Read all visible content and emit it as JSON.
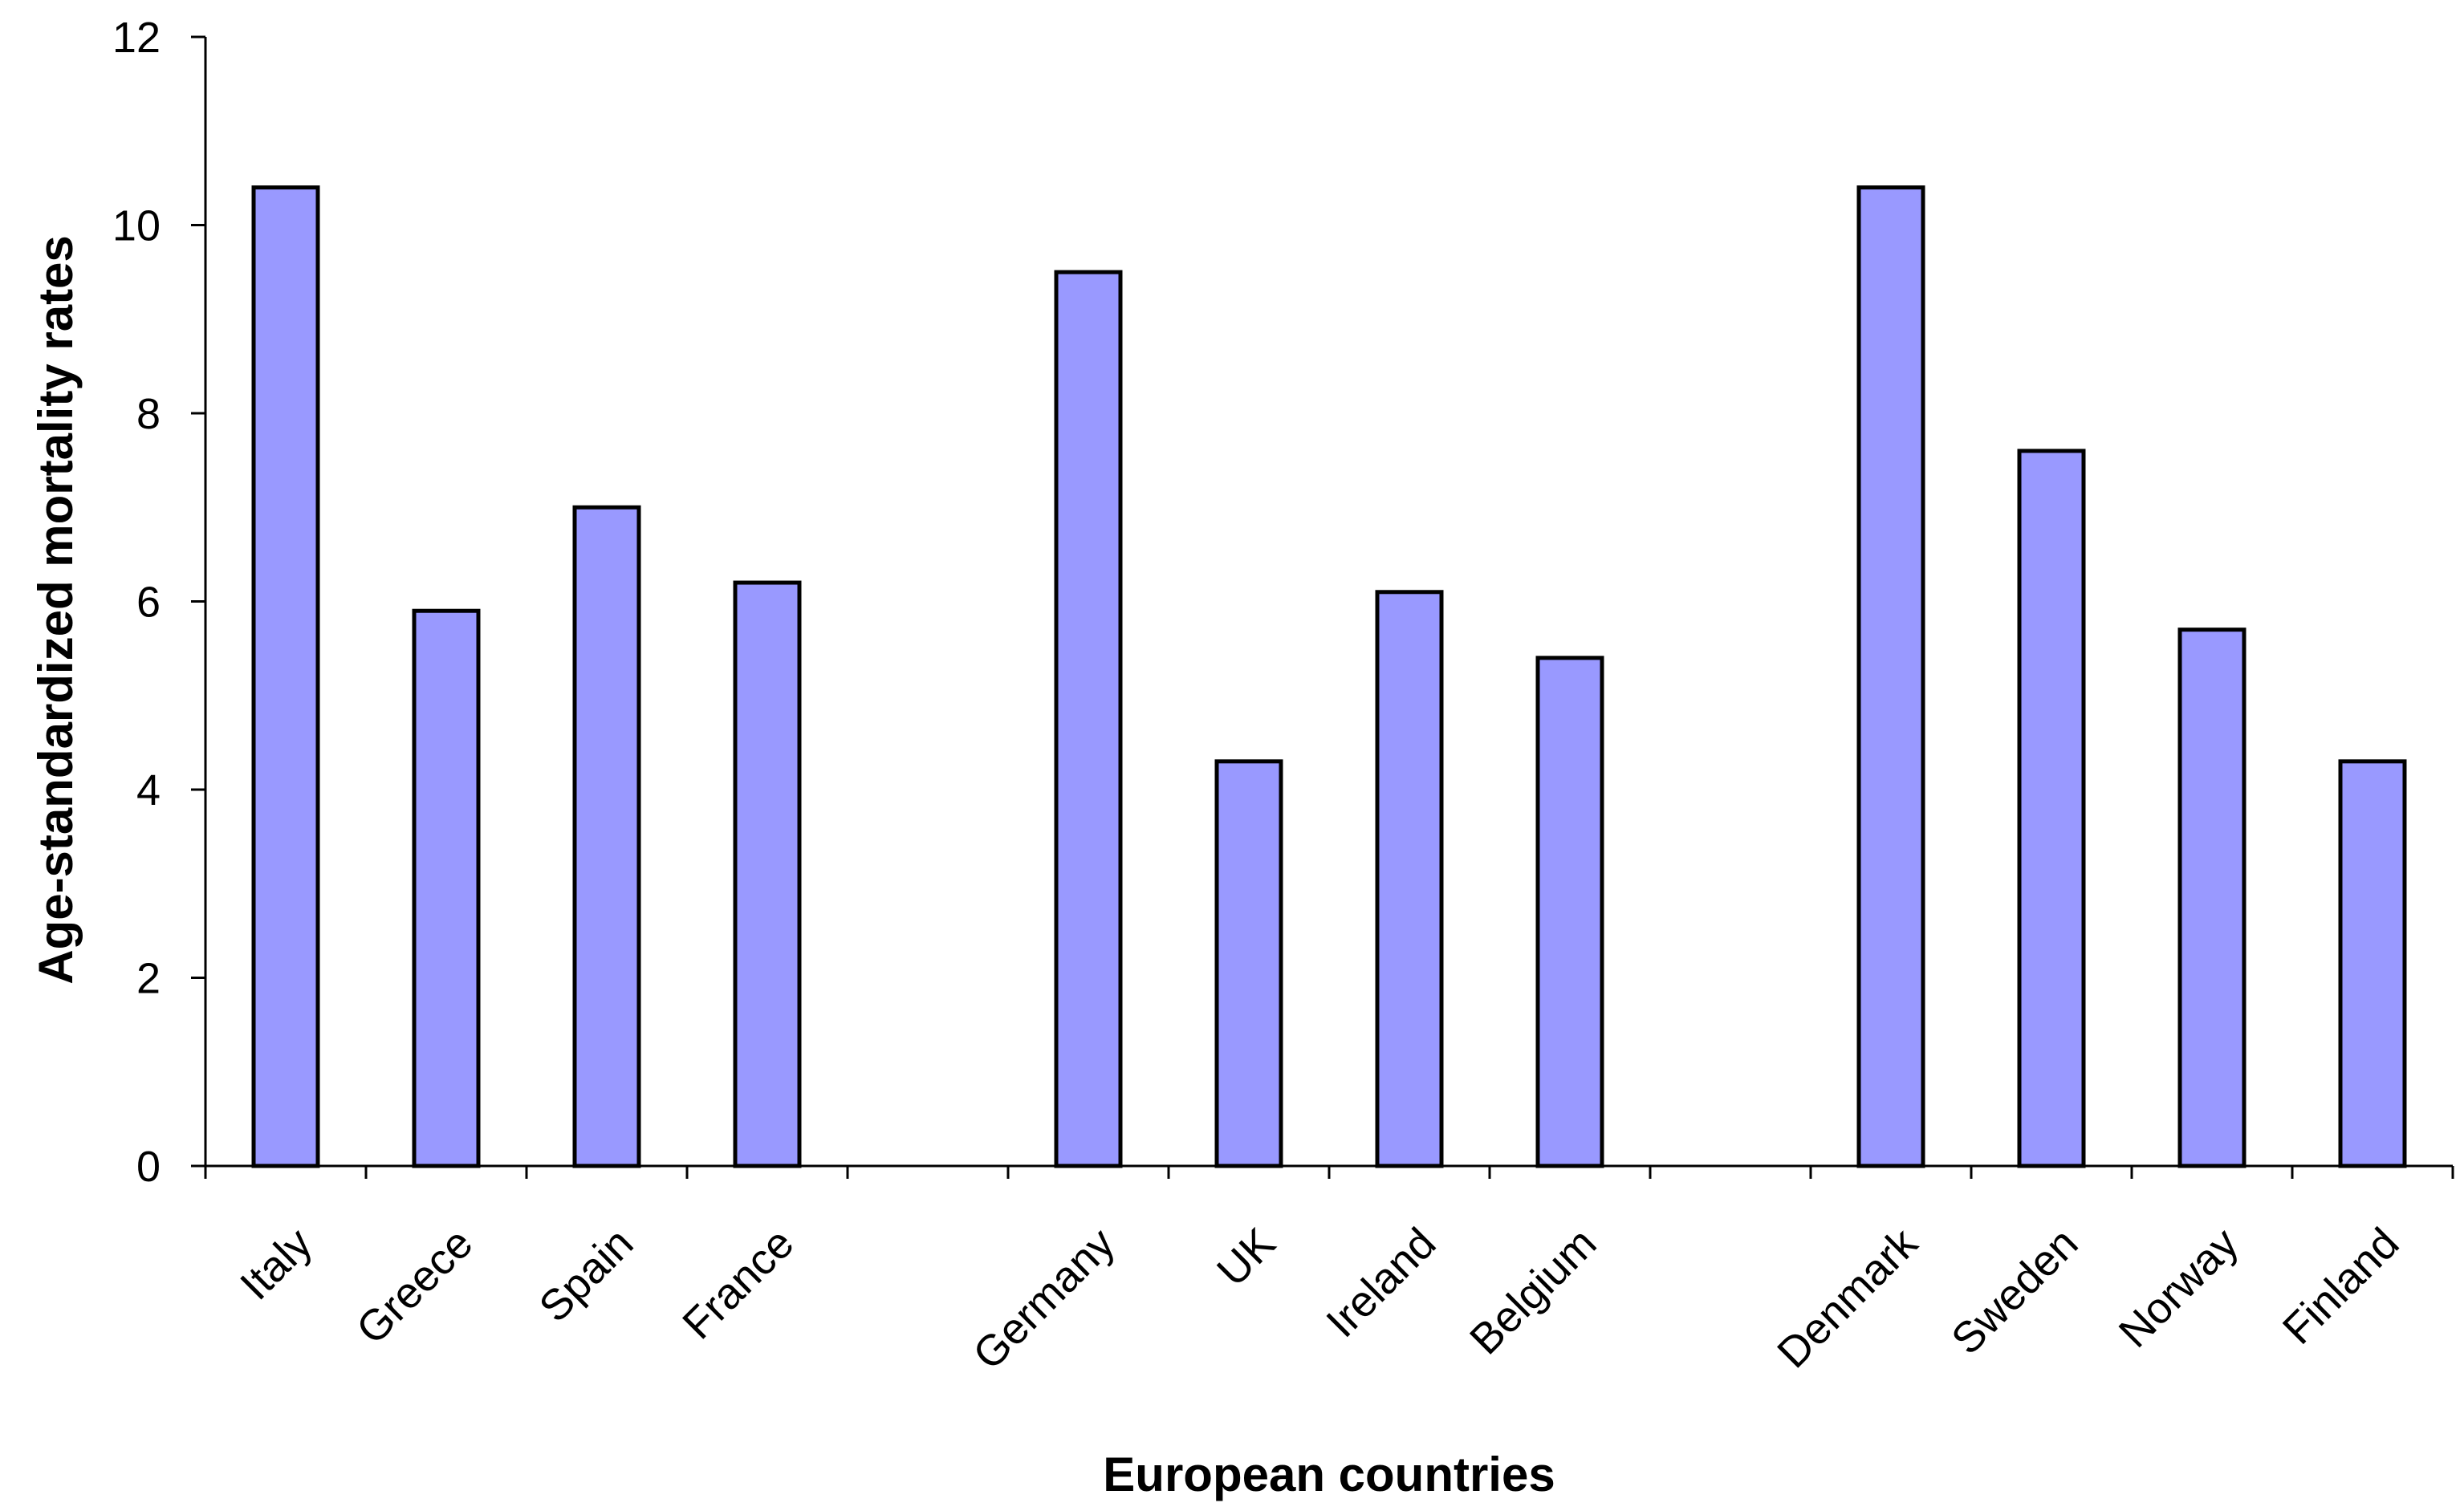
{
  "chart_data": {
    "type": "bar",
    "title": "",
    "xlabel": "European countries",
    "ylabel": "Age-standardized mortality rates",
    "ylim": [
      0,
      12
    ],
    "yticks": [
      0,
      2,
      4,
      6,
      8,
      10,
      12
    ],
    "categories": [
      "Italy",
      "Greece",
      "Spain",
      "France",
      "",
      "Germany",
      "UK",
      "Ireland",
      "Belgium",
      "",
      "Denmark",
      "Sweden",
      "Norway",
      "Finland"
    ],
    "values": [
      10.4,
      5.9,
      7.0,
      6.2,
      null,
      9.5,
      4.3,
      6.1,
      5.4,
      null,
      10.4,
      7.6,
      5.7,
      4.3
    ],
    "grid": false,
    "legend": "none",
    "bar_color": "#9999ff",
    "bar_border_color": "#000000"
  }
}
